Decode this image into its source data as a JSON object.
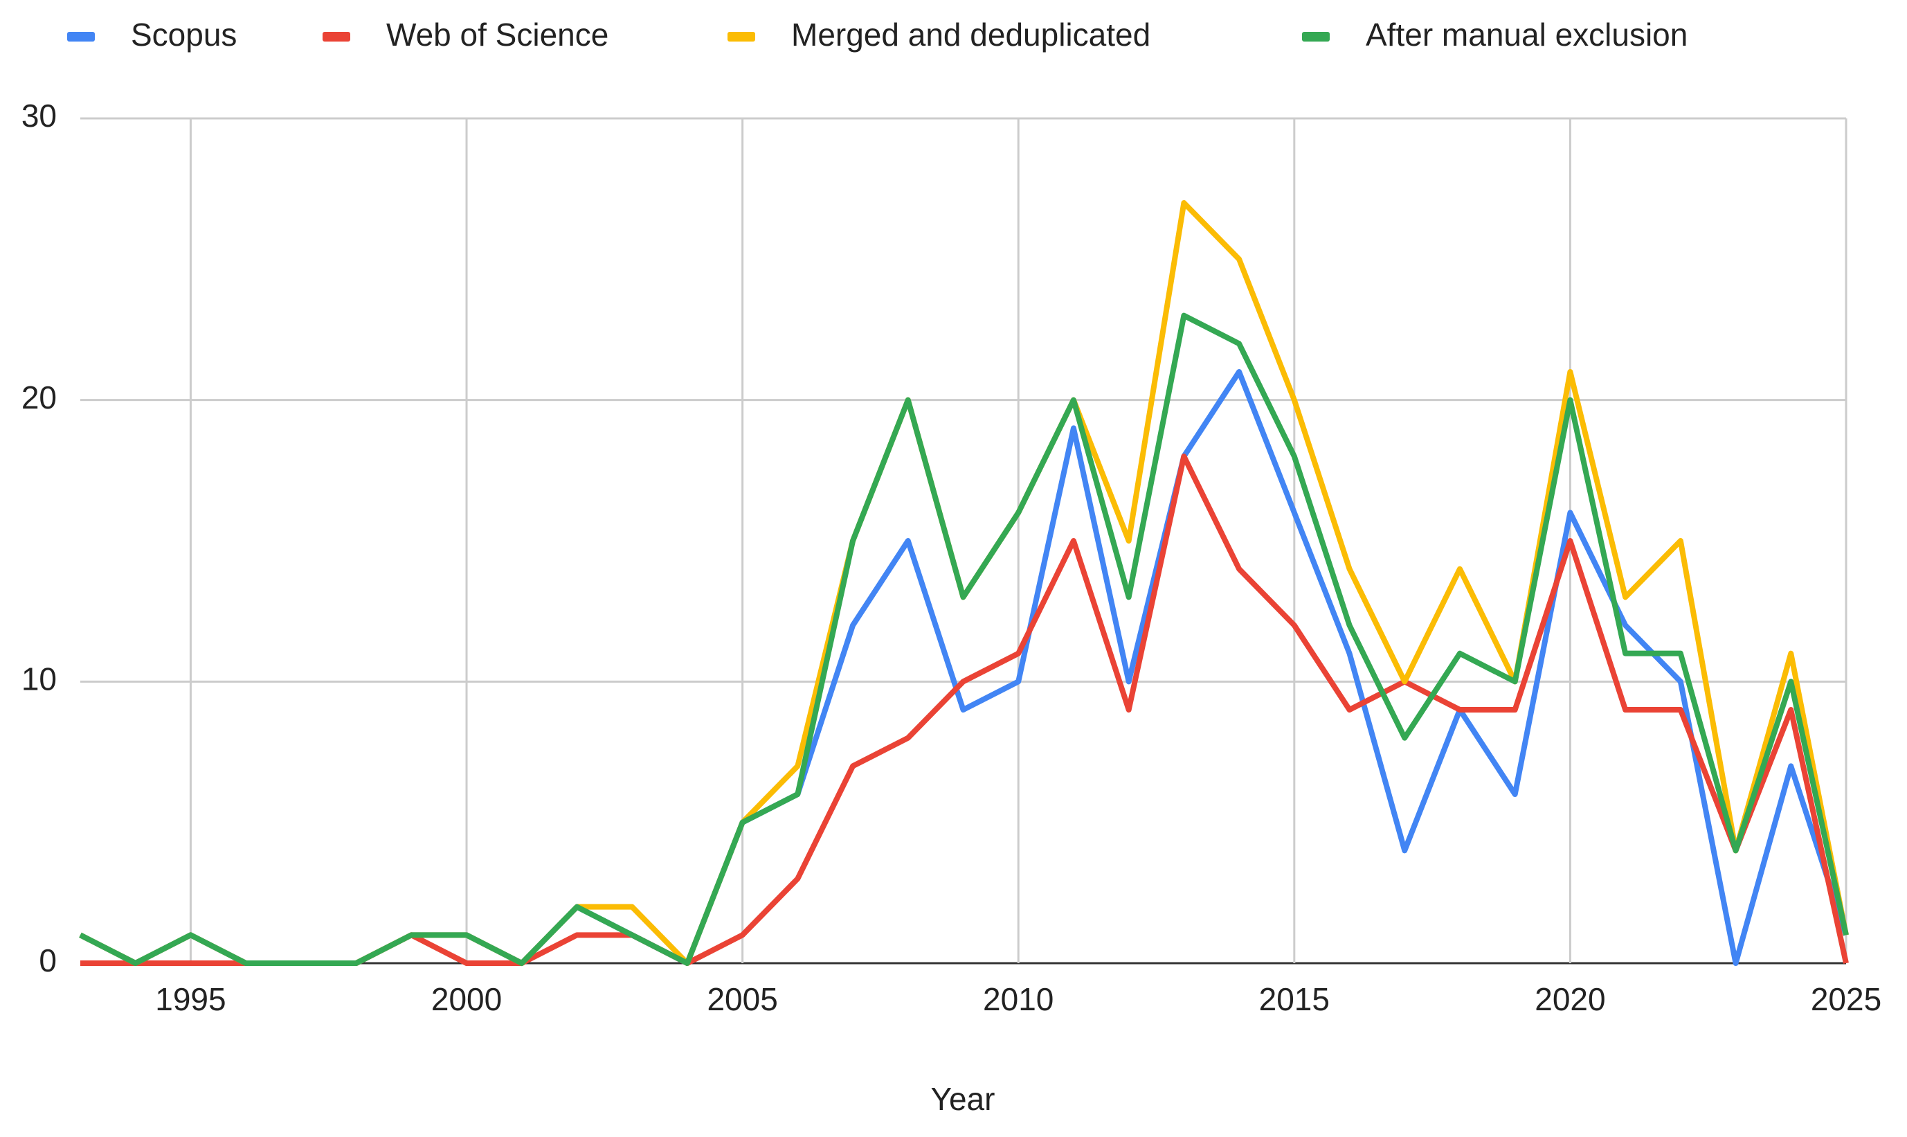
{
  "chart_data": {
    "type": "line",
    "x_label": "Year",
    "x": [
      1993,
      1994,
      1995,
      1996,
      1997,
      1998,
      1999,
      2000,
      2001,
      2002,
      2003,
      2004,
      2005,
      2006,
      2007,
      2008,
      2009,
      2010,
      2011,
      2012,
      2013,
      2014,
      2015,
      2016,
      2017,
      2018,
      2019,
      2020,
      2021,
      2022,
      2023,
      2024,
      2025
    ],
    "series": [
      {
        "name": "Scopus",
        "color": "#4285f4",
        "values": [
          1,
          0,
          1,
          0,
          0,
          0,
          1,
          1,
          0,
          2,
          1,
          0,
          5,
          6,
          12,
          15,
          9,
          10,
          19,
          10,
          18,
          21,
          16,
          11,
          4,
          9,
          6,
          16,
          12,
          10,
          0,
          7,
          1
        ]
      },
      {
        "name": "Web of Science",
        "color": "#ea4335",
        "values": [
          0,
          0,
          0,
          0,
          0,
          0,
          1,
          0,
          0,
          1,
          1,
          0,
          1,
          3,
          7,
          8,
          10,
          11,
          15,
          9,
          18,
          14,
          12,
          9,
          10,
          9,
          9,
          15,
          9,
          9,
          4,
          9,
          0
        ]
      },
      {
        "name": "Merged and deduplicated",
        "color": "#fbbc04",
        "values": [
          1,
          0,
          1,
          0,
          0,
          0,
          1,
          1,
          0,
          2,
          2,
          0,
          5,
          7,
          15,
          20,
          13,
          16,
          20,
          15,
          27,
          25,
          20,
          14,
          10,
          14,
          10,
          21,
          13,
          15,
          4,
          11,
          1
        ]
      },
      {
        "name": "After manual exclusion",
        "color": "#34a853",
        "values": [
          1,
          0,
          1,
          0,
          0,
          0,
          1,
          1,
          0,
          2,
          1,
          0,
          5,
          6,
          15,
          20,
          13,
          16,
          20,
          13,
          23,
          22,
          18,
          12,
          8,
          11,
          10,
          20,
          11,
          11,
          4,
          10,
          1
        ]
      }
    ],
    "xlim": [
      1993,
      2025
    ],
    "xticks": [
      1995,
      2000,
      2005,
      2010,
      2015,
      2020,
      2025
    ],
    "ylim": [
      0,
      30
    ],
    "yticks": [
      0,
      10,
      20,
      30
    ],
    "grid": true,
    "legend": "top"
  }
}
